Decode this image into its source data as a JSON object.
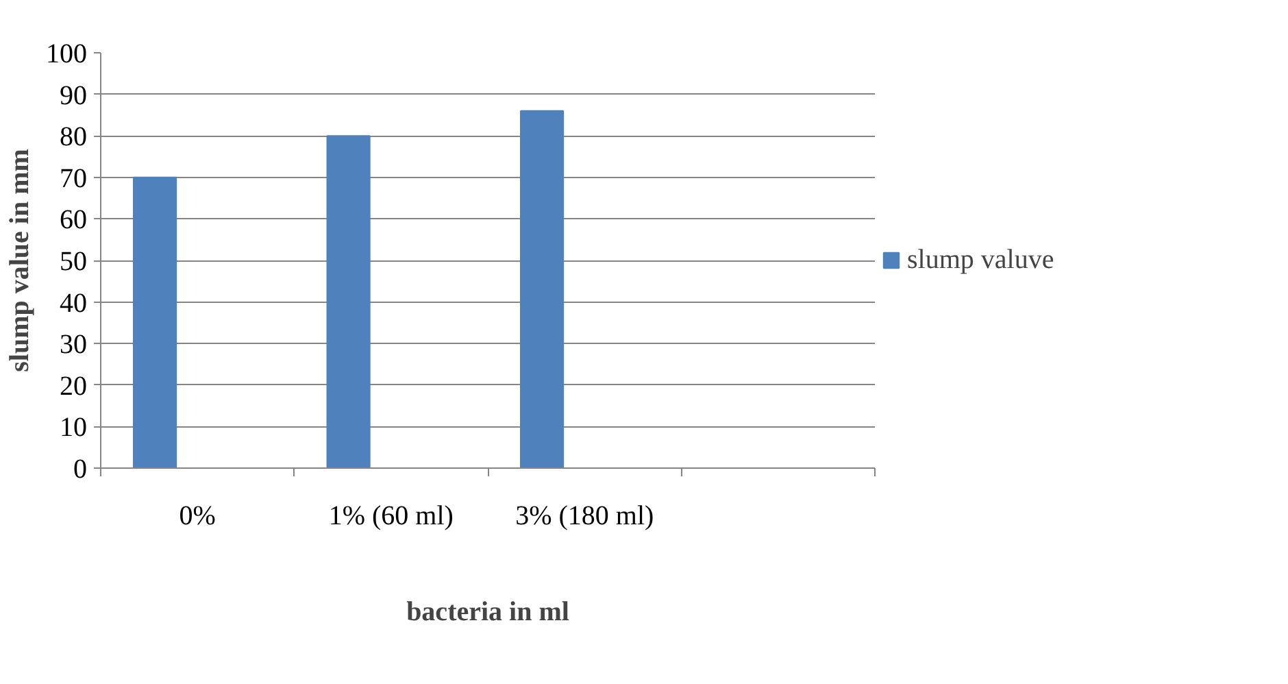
{
  "chart_data": {
    "type": "bar",
    "xlabel": "bacteria in ml",
    "ylabel": "slump value in mm",
    "categories": [
      "0%",
      "1% (60 ml)",
      "3% (180 ml)",
      null
    ],
    "series": [
      {
        "name": "slump valuve",
        "color": "#4f81bd",
        "values": [
          70,
          80,
          86,
          null
        ]
      }
    ],
    "ylim": [
      0,
      100
    ],
    "yticks": [
      0,
      10,
      20,
      30,
      40,
      50,
      60,
      70,
      80,
      90,
      100
    ],
    "grid": "y",
    "legend": "right"
  }
}
